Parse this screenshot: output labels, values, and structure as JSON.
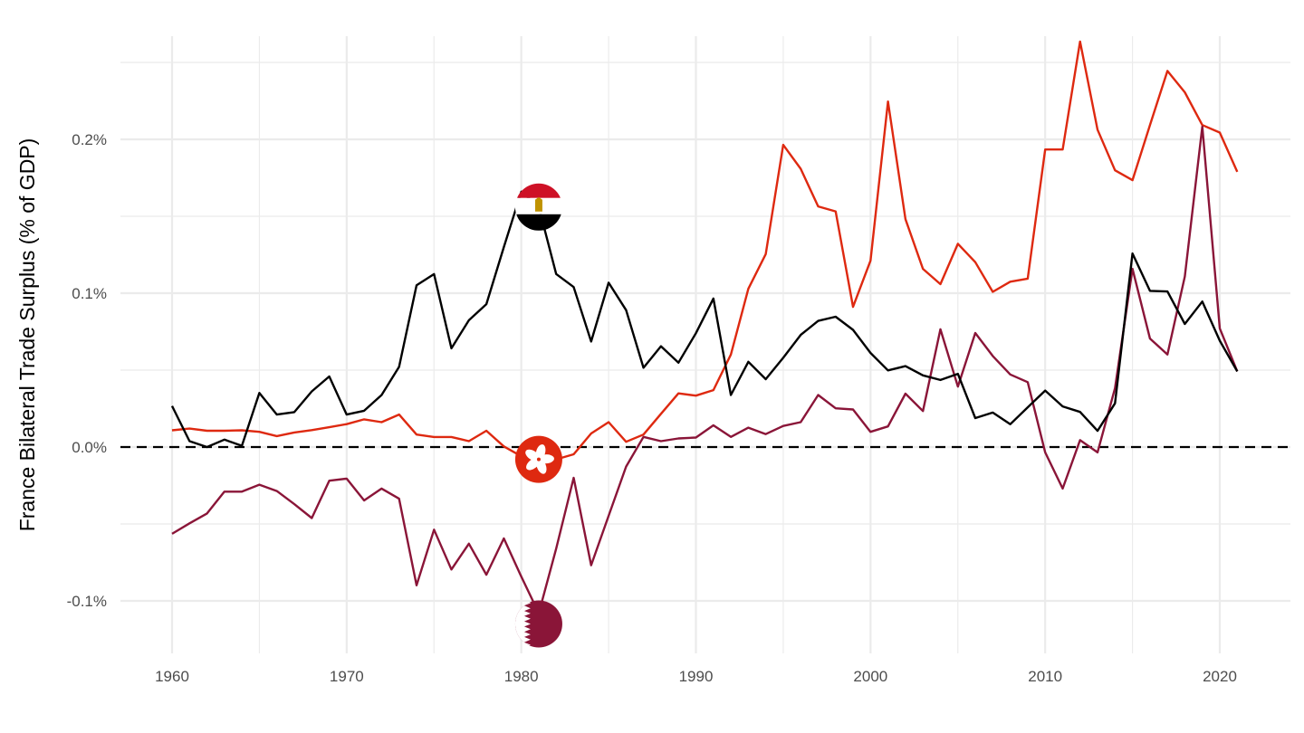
{
  "chart_data": {
    "type": "line",
    "title": "",
    "xlabel": "",
    "ylabel": "France Bilateral Trade Surplus (% of GDP)",
    "xlim": [
      1957,
      2024
    ],
    "ylim": [
      -0.132,
      0.265
    ],
    "grid": true,
    "legend": "none (flags mark each series)",
    "x_ticks": [
      1960,
      1970,
      1980,
      1990,
      2000,
      2010,
      2020
    ],
    "x_tick_labels": [
      "1960",
      "1970",
      "1980",
      "1990",
      "2000",
      "2010",
      "2020"
    ],
    "y_ticks": [
      -0.1,
      0.0,
      0.1,
      0.2
    ],
    "y_tick_labels": [
      "-0.1%",
      "0.0%",
      "0.1%",
      "0.2%"
    ],
    "reference_line": {
      "y": 0,
      "style": "dashed",
      "color": "#000000"
    },
    "x": [
      1960,
      1961,
      1962,
      1963,
      1964,
      1965,
      1966,
      1967,
      1968,
      1969,
      1970,
      1971,
      1972,
      1973,
      1974,
      1975,
      1976,
      1977,
      1978,
      1979,
      1980,
      1981,
      1982,
      1983,
      1984,
      1985,
      1986,
      1987,
      1988,
      1989,
      1990,
      1991,
      1992,
      1993,
      1994,
      1995,
      1996,
      1997,
      1998,
      1999,
      2000,
      2001,
      2002,
      2003,
      2004,
      2005,
      2006,
      2007,
      2008,
      2009,
      2010,
      2011,
      2012,
      2013,
      2014,
      2015,
      2016,
      2017,
      2018,
      2019,
      2020,
      2021
    ],
    "series": [
      {
        "name": "Egypt",
        "flag": "egypt",
        "color": "#000000",
        "values": [
          0.0267,
          0.0038,
          0.0,
          0.0048,
          0.0008,
          0.0352,
          0.0211,
          0.0227,
          0.0362,
          0.0459,
          0.0211,
          0.0236,
          0.0338,
          0.0521,
          0.1051,
          0.1124,
          0.0642,
          0.0824,
          0.0929,
          0.13,
          0.166,
          0.156,
          0.1125,
          0.104,
          0.0686,
          0.1068,
          0.089,
          0.0515,
          0.0655,
          0.0548,
          0.074,
          0.0965,
          0.0338,
          0.0554,
          0.0441,
          0.058,
          0.0729,
          0.082,
          0.0847,
          0.0762,
          0.0612,
          0.0498,
          0.0526,
          0.0466,
          0.0436,
          0.0476,
          0.0188,
          0.0224,
          0.0148,
          0.0258,
          0.0367,
          0.0264,
          0.0228,
          0.0105,
          0.0284,
          0.1258,
          0.1015,
          0.1011,
          0.08,
          0.0946,
          0.0691,
          0.0492
        ]
      },
      {
        "name": "Hong Kong",
        "flag": "hong-kong",
        "color": "#DE2910",
        "values": [
          0.0109,
          0.012,
          0.0106,
          0.0106,
          0.0109,
          0.0099,
          0.0071,
          0.0095,
          0.011,
          0.0129,
          0.0149,
          0.018,
          0.0162,
          0.0211,
          0.0081,
          0.0065,
          0.0065,
          0.0038,
          0.0106,
          0.0004,
          -0.006,
          -0.008,
          -0.008,
          -0.0047,
          0.0088,
          0.0162,
          0.0034,
          0.0081,
          0.0216,
          0.0349,
          0.0334,
          0.037,
          0.0601,
          0.1029,
          0.1254,
          0.1964,
          0.1809,
          0.1564,
          0.1532,
          0.0911,
          0.1211,
          0.2246,
          0.1481,
          0.1158,
          0.1059,
          0.1321,
          0.1202,
          0.1009,
          0.1075,
          0.1095,
          0.1934,
          0.1934,
          0.2636,
          0.2063,
          0.1799,
          0.1735,
          0.2093,
          0.2445,
          0.2306,
          0.2093,
          0.2044,
          0.1789
        ]
      },
      {
        "name": "Qatar",
        "flag": "qatar",
        "color": "#8A1538",
        "values": [
          -0.0564,
          -0.0496,
          -0.0432,
          -0.029,
          -0.029,
          -0.0245,
          -0.0286,
          -0.0371,
          -0.0462,
          -0.0219,
          -0.0205,
          -0.0347,
          -0.027,
          -0.0336,
          -0.0899,
          -0.0537,
          -0.0796,
          -0.0628,
          -0.083,
          -0.0594,
          -0.0843,
          -0.108,
          -0.066,
          -0.02,
          -0.0768,
          -0.0447,
          -0.0127,
          0.0066,
          0.0038,
          0.0056,
          0.0062,
          0.0141,
          0.0066,
          0.0126,
          0.0084,
          0.0137,
          0.0162,
          0.0338,
          0.0252,
          0.0244,
          0.0099,
          0.0134,
          0.0347,
          0.0234,
          0.0765,
          0.0393,
          0.0741,
          0.0592,
          0.0472,
          0.0422,
          -0.0035,
          -0.027,
          0.0045,
          -0.0035,
          0.0383,
          0.1158,
          0.0705,
          0.0602,
          0.1109,
          0.2083,
          0.0771,
          0.0492
        ]
      }
    ],
    "flag_markers": [
      {
        "series": "Egypt",
        "x": 1981,
        "y": 0.156
      },
      {
        "series": "Hong Kong",
        "x": 1981,
        "y": -0.008
      },
      {
        "series": "Qatar",
        "x": 1981,
        "y": -0.115
      }
    ]
  }
}
